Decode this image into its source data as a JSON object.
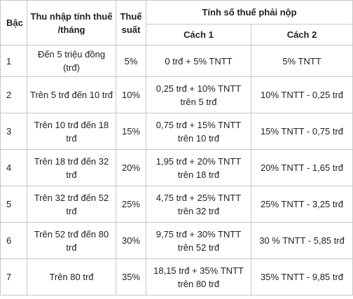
{
  "table": {
    "header": {
      "level": "Bậc",
      "income": "Thu nhập tính thuế /tháng",
      "rate": "Thuế suất",
      "tax": "Tính số thuế phải nộp",
      "method1": "Cách 1",
      "method2": "Cách 2"
    },
    "rows": [
      [
        1,
        "Đến 5 triệu đồng (trđ)",
        "5%",
        "0 trđ + 5% TNTT",
        "5% TNTT"
      ],
      [
        2,
        "Trên 5 trđ đến 10 trđ",
        "10%",
        "0,25 trđ + 10% TNTT trên 5 trđ",
        "10% TNTT - 0,25 trđ"
      ],
      [
        3,
        "Trên 10 trđ đến 18 trđ",
        "15%",
        "0,75 trđ + 15% TNTT trên 10 trđ",
        "15% TNTT - 0,75 trđ"
      ],
      [
        4,
        "Trên 18 trđ đến 32 trđ",
        "20%",
        "1,95 trđ + 20% TNTT trên 18 trđ",
        "20% TNTT - 1,65 trđ"
      ],
      [
        5,
        "Trên 32 trđ đến 52 trđ",
        "25%",
        "4,75 trđ + 25% TNTT trên 32 trđ",
        "25% TNTT - 3,25 trđ"
      ],
      [
        6,
        "Trên 52 trđ đến 80 trđ",
        "30%",
        "9,75 trđ + 30% TNTT trên 52 trđ",
        "30 % TNTT - 5,85 trđ"
      ],
      [
        7,
        "Trên 80 trđ",
        "35%",
        "18,15 trđ + 35% TNTT trên 80 trđ",
        "35% TNTT - 9,85 trđ"
      ]
    ]
  }
}
